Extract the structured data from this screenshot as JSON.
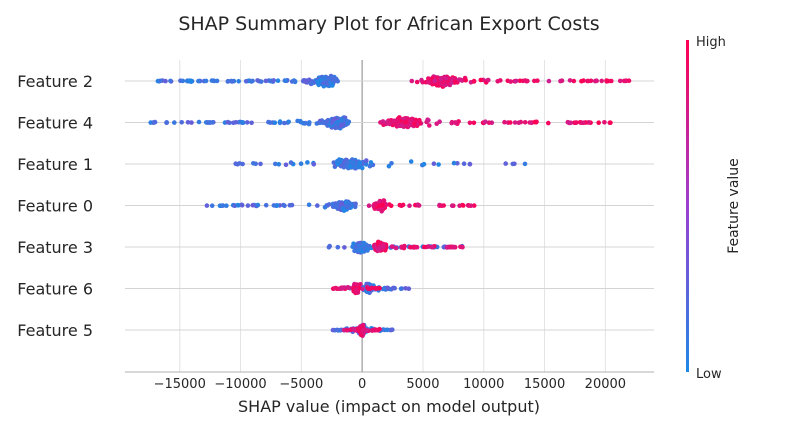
{
  "chart_data": {
    "type": "scatter",
    "title": "SHAP Summary Plot for African Export Costs",
    "xlabel": "SHAP value (impact on model output)",
    "xlim": [
      -19500,
      24000
    ],
    "x_ticks": [
      -15000,
      -10000,
      -5000,
      0,
      5000,
      10000,
      15000,
      20000
    ],
    "x_tick_labels": [
      "−15000",
      "−10000",
      "−5000",
      "0",
      "5000",
      "10000",
      "15000",
      "20000"
    ],
    "grid": true,
    "colorbar": {
      "label": "Feature value",
      "high_label": "High",
      "low_label": "Low",
      "low_color": "#1e88e5",
      "high_color": "#ff0052"
    },
    "features": [
      {
        "name": "Feature 2",
        "low": {
          "min": -17000,
          "max": -2000,
          "core": -3000
        },
        "high": {
          "min": 4000,
          "max": 22000,
          "core": 6500
        }
      },
      {
        "name": "Feature 4",
        "low": {
          "min": -17500,
          "max": -1000,
          "core": -2000
        },
        "high": {
          "min": 1500,
          "max": 21000,
          "core": 3500
        }
      },
      {
        "name": "Feature 1",
        "low": {
          "min": -11000,
          "max": 14500,
          "core": -1000
        },
        "high": null
      },
      {
        "name": "Feature 0",
        "low": {
          "min": -13000,
          "max": -500,
          "core": -1500
        },
        "high": {
          "min": 500,
          "max": 9500,
          "core": 1500
        }
      },
      {
        "name": "Feature 3",
        "low": {
          "min": -3000,
          "max": 8500,
          "core": 0
        },
        "high": {
          "min": 1000,
          "max": 8500,
          "core": 1500
        }
      },
      {
        "name": "Feature 6",
        "low": {
          "min": -1500,
          "max": 4000,
          "core": 500
        },
        "high": {
          "min": -2500,
          "max": 1500,
          "core": -500
        }
      },
      {
        "name": "Feature 5",
        "low": {
          "min": -2500,
          "max": 2500,
          "core": 0
        },
        "high": {
          "min": -1500,
          "max": 1500,
          "core": 0
        }
      }
    ]
  }
}
